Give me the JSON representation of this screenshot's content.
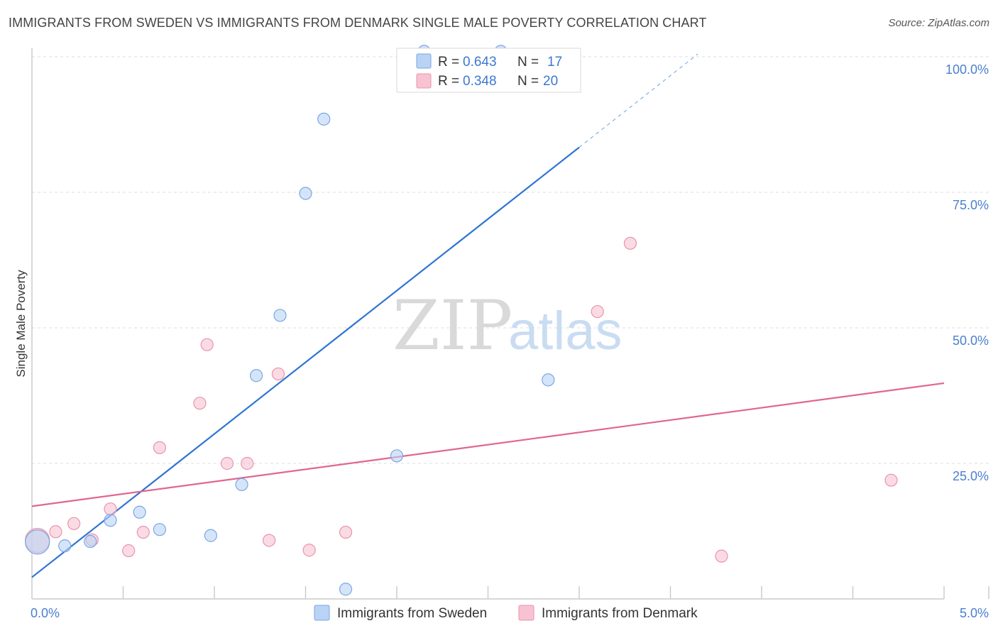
{
  "header": {
    "title": "IMMIGRANTS FROM SWEDEN VS IMMIGRANTS FROM DENMARK SINGLE MALE POVERTY CORRELATION CHART",
    "source": "Source: ZipAtlas.com"
  },
  "watermark": {
    "zip": "ZIP",
    "atlas": "atlas"
  },
  "colors": {
    "sweden_fill": "#b9d3f5",
    "sweden_stroke": "#7aa6e3",
    "sweden_line": "#2e74d2",
    "denmark_fill": "#f7c3d2",
    "denmark_stroke": "#ea93ae",
    "denmark_line": "#e0668f",
    "tick_text": "#4a7fd0",
    "grid": "#dddddd"
  },
  "legend": {
    "r_label": "R =",
    "n_label": "N =",
    "rows": [
      {
        "series": "sweden",
        "r": "0.643",
        "n": "17"
      },
      {
        "series": "denmark",
        "r": "0.348",
        "n": "20"
      }
    ]
  },
  "chart_data": {
    "type": "scatter",
    "title": "IMMIGRANTS FROM SWEDEN VS IMMIGRANTS FROM DENMARK SINGLE MALE POVERTY CORRELATION CHART",
    "xlabel": "",
    "ylabel": "Single Male Poverty",
    "xlim": [
      0,
      5
    ],
    "ylim": [
      0,
      100
    ],
    "x_tick_labels": [
      {
        "value": 0,
        "label": "0.0%"
      },
      {
        "value": 5,
        "label": "5.0%"
      }
    ],
    "y_tick_labels": [
      {
        "value": 25,
        "label": "25.0%"
      },
      {
        "value": 50,
        "label": "50.0%"
      },
      {
        "value": 75,
        "label": "75.0%"
      },
      {
        "value": 100,
        "label": "100.0%"
      }
    ],
    "x_minor_ticks": [
      0.5,
      1.0,
      1.5,
      2.0,
      2.5,
      3.0,
      3.5,
      4.0,
      4.5,
      5.0
    ],
    "grid": true,
    "legend_position": "top-center",
    "series": [
      {
        "name": "Immigrants from Sweden",
        "key": "sweden",
        "r": 0.643,
        "n": 17,
        "points": [
          {
            "x": 0.03,
            "y": 10.5,
            "size": "large"
          },
          {
            "x": 0.18,
            "y": 9.8
          },
          {
            "x": 0.32,
            "y": 10.6
          },
          {
            "x": 0.43,
            "y": 14.5
          },
          {
            "x": 0.59,
            "y": 16.0
          },
          {
            "x": 0.7,
            "y": 12.8
          },
          {
            "x": 0.98,
            "y": 11.7
          },
          {
            "x": 1.15,
            "y": 21.1
          },
          {
            "x": 1.23,
            "y": 41.2
          },
          {
            "x": 1.36,
            "y": 52.3
          },
          {
            "x": 1.5,
            "y": 74.8
          },
          {
            "x": 1.6,
            "y": 88.5
          },
          {
            "x": 1.72,
            "y": 1.8
          },
          {
            "x": 2.0,
            "y": 26.4
          },
          {
            "x": 2.15,
            "y": 101.0
          },
          {
            "x": 2.57,
            "y": 101.0
          },
          {
            "x": 2.83,
            "y": 40.4
          }
        ],
        "trend": {
          "x1": 0,
          "y1": 4.0,
          "x2": 3.0,
          "y2": 83.3,
          "dashed_x2": 3.65,
          "dashed_y2": 100.5
        }
      },
      {
        "name": "Immigrants from Denmark",
        "key": "denmark",
        "r": 0.348,
        "n": 20,
        "points": [
          {
            "x": 0.03,
            "y": 10.8,
            "size": "large"
          },
          {
            "x": 0.13,
            "y": 12.4
          },
          {
            "x": 0.23,
            "y": 13.9
          },
          {
            "x": 0.33,
            "y": 10.9
          },
          {
            "x": 0.43,
            "y": 16.6
          },
          {
            "x": 0.53,
            "y": 8.9
          },
          {
            "x": 0.61,
            "y": 12.3
          },
          {
            "x": 0.7,
            "y": 27.9
          },
          {
            "x": 0.92,
            "y": 36.1
          },
          {
            "x": 0.96,
            "y": 46.9
          },
          {
            "x": 1.07,
            "y": 25.0
          },
          {
            "x": 1.18,
            "y": 25.0
          },
          {
            "x": 1.3,
            "y": 10.8
          },
          {
            "x": 1.35,
            "y": 41.5
          },
          {
            "x": 1.52,
            "y": 9.0
          },
          {
            "x": 1.72,
            "y": 12.3
          },
          {
            "x": 3.1,
            "y": 53.0
          },
          {
            "x": 3.28,
            "y": 65.6
          },
          {
            "x": 3.78,
            "y": 7.9
          },
          {
            "x": 4.71,
            "y": 21.9
          }
        ],
        "trend": {
          "x1": 0,
          "y1": 17.1,
          "x2": 5.0,
          "y2": 39.8
        }
      }
    ]
  },
  "bottom_legend": {
    "items": [
      {
        "series": "sweden",
        "label": "Immigrants from Sweden"
      },
      {
        "series": "denmark",
        "label": "Immigrants from Denmark"
      }
    ]
  }
}
